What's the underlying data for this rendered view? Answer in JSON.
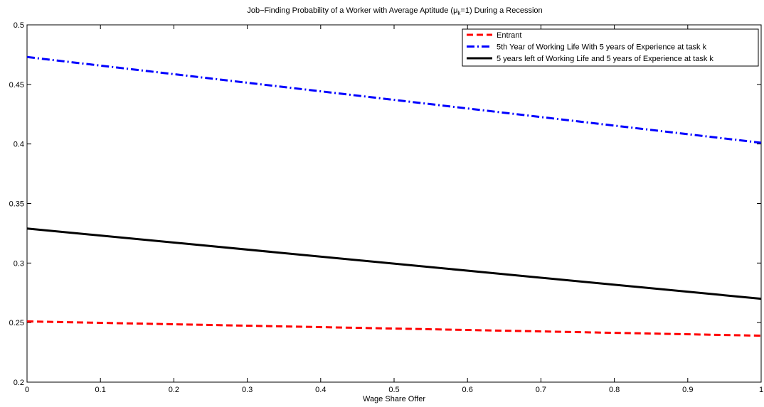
{
  "chart_data": {
    "type": "line",
    "title_parts": {
      "before": "Job−Finding Probability of a Worker with Average Aptitude (",
      "mu": "μ",
      "sub": "k",
      "after": "=1) During a Recession"
    },
    "xlabel": "Wage Share Offer",
    "ylabel": "",
    "xlim": [
      0,
      1
    ],
    "ylim": [
      0.2,
      0.5
    ],
    "xticks": [
      "0",
      "0.1",
      "0.2",
      "0.3",
      "0.4",
      "0.5",
      "0.6",
      "0.7",
      "0.8",
      "0.9",
      "1"
    ],
    "yticks": [
      "0.2",
      "0.25",
      "0.3",
      "0.35",
      "0.4",
      "0.45",
      "0.5"
    ],
    "grid": false,
    "legend_position": "top-right",
    "series": [
      {
        "name": "Entrant",
        "color": "#ff0000",
        "style": "dashed",
        "x": [
          0,
          1
        ],
        "y": [
          0.251,
          0.239
        ]
      },
      {
        "name": "5th Year of Working Life With 5 years of Experience at task k",
        "color": "#0000ff",
        "style": "dashdot",
        "x": [
          0,
          1
        ],
        "y": [
          0.473,
          0.401
        ]
      },
      {
        "name": "5 years left of Working Life and 5 years of Experience at task k",
        "color": "#000000",
        "style": "solid",
        "x": [
          0,
          1
        ],
        "y": [
          0.329,
          0.27
        ]
      }
    ]
  }
}
